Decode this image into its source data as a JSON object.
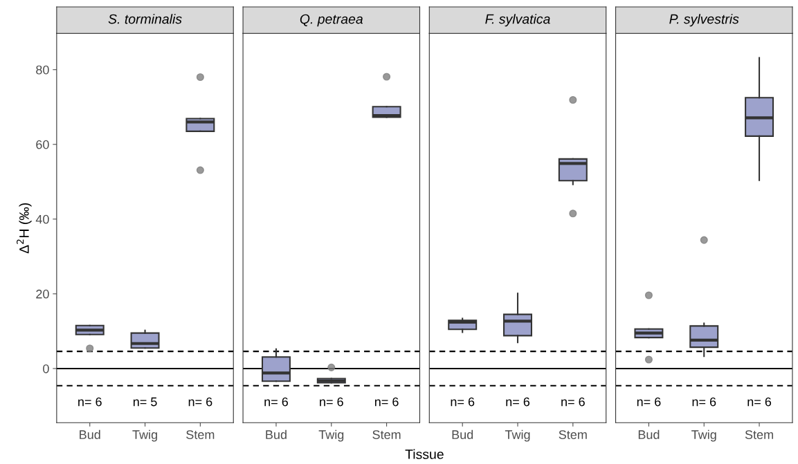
{
  "chart_data": [
    {
      "type": "box",
      "title": "S. torminalis",
      "ylabel": "Δ$^{2}$H (‰)",
      "categories": [
        "Bud",
        "Twig",
        "Stem"
      ],
      "color": "#9da2cc",
      "ylim": [
        -14.5,
        89.7
      ],
      "yticks": [
        0,
        20,
        40,
        60,
        80
      ],
      "grid": false,
      "boxes": [
        {
          "low": 9.1,
          "q1": 9.1,
          "median": 10.3,
          "q3": 11.5,
          "high": 11.5,
          "outliers": [
            5.4
          ]
        },
        {
          "low": 5.5,
          "q1": 5.5,
          "median": 6.7,
          "q3": 9.5,
          "high": 10.2
        },
        {
          "low": 63.5,
          "q1": 63.5,
          "median": 66.0,
          "q3": 66.9,
          "high": 66.9,
          "outliers": [
            78.0,
            53.1
          ]
        }
      ],
      "ref_lines": [
        {
          "axis": "y",
          "value": 0,
          "line_style": "solid"
        },
        {
          "axis": "y",
          "value": 4.6,
          "line_style": "dashed"
        },
        {
          "axis": "y",
          "value": -4.6,
          "line_style": "dashed"
        }
      ],
      "annotations": [
        "n= 6",
        "n= 5",
        "n= 6"
      ]
    },
    {
      "type": "box",
      "title": "Q. petraea",
      "xlabel": "Tissue",
      "categories": [
        "Bud",
        "Twig",
        "Stem"
      ],
      "color": "#9da2cc",
      "ylim": [
        -14.5,
        89.7
      ],
      "yticks": [
        0,
        20,
        40,
        60,
        80
      ],
      "tick_labels": "x",
      "grid": false,
      "boxes": [
        {
          "low": -3.4,
          "q1": -3.4,
          "median": -1.2,
          "q3": 3.1,
          "high": 5.2
        },
        {
          "low": -3.8,
          "q1": -3.8,
          "median": -3.3,
          "q3": -2.7,
          "high": -2.7,
          "outliers": [
            0.3
          ]
        },
        {
          "low": 67.3,
          "q1": 67.3,
          "median": 67.7,
          "q3": 70.1,
          "high": 70.1,
          "outliers": [
            78.1
          ]
        }
      ],
      "ref_lines": [
        {
          "axis": "y",
          "value": 0,
          "line_style": "solid"
        },
        {
          "axis": "y",
          "value": 4.6,
          "line_style": "dashed"
        },
        {
          "axis": "y",
          "value": -4.6,
          "line_style": "dashed"
        }
      ],
      "annotations": [
        "n= 6",
        "n= 6",
        "n= 6"
      ]
    },
    {
      "type": "box",
      "title": "F. sylvatica",
      "categories": [
        "Bud",
        "Twig",
        "Stem"
      ],
      "color": "#9da2cc",
      "ylim": [
        -14.5,
        89.7
      ],
      "yticks": [
        0,
        20,
        40,
        60,
        80
      ],
      "tick_labels": "x",
      "grid": false,
      "boxes": [
        {
          "low": 9.7,
          "q1": 10.5,
          "median": 12.4,
          "q3": 12.9,
          "high": 13.4
        },
        {
          "low": 7.0,
          "q1": 8.8,
          "median": 12.7,
          "q3": 14.5,
          "high": 20.1
        },
        {
          "low": 49.3,
          "q1": 50.3,
          "median": 54.9,
          "q3": 56.1,
          "high": 56.1,
          "outliers": [
            71.9,
            41.5
          ]
        }
      ],
      "ref_lines": [
        {
          "axis": "y",
          "value": 0,
          "line_style": "solid"
        },
        {
          "axis": "y",
          "value": 4.6,
          "line_style": "dashed"
        },
        {
          "axis": "y",
          "value": -4.6,
          "line_style": "dashed"
        }
      ],
      "annotations": [
        "n= 6",
        "n= 6",
        "n= 6"
      ]
    },
    {
      "type": "box",
      "title": "P. sylvestris",
      "categories": [
        "Bud",
        "Twig",
        "Stem"
      ],
      "color": "#9da2cc",
      "ylim": [
        -14.5,
        89.7
      ],
      "yticks": [
        0,
        20,
        40,
        60,
        80
      ],
      "tick_labels": "x",
      "grid": false,
      "boxes": [
        {
          "low": 8.3,
          "q1": 8.3,
          "median": 9.5,
          "q3": 10.6,
          "high": 10.6,
          "outliers": [
            19.6,
            2.4
          ]
        },
        {
          "low": 3.3,
          "q1": 5.7,
          "median": 7.6,
          "q3": 11.4,
          "high": 12.1,
          "outliers": [
            34.4
          ]
        },
        {
          "low": 50.4,
          "q1": 62.2,
          "median": 67.1,
          "q3": 72.5,
          "high": 83.2
        }
      ],
      "ref_lines": [
        {
          "axis": "y",
          "value": 0,
          "line_style": "solid"
        },
        {
          "axis": "y",
          "value": 4.6,
          "line_style": "dashed"
        },
        {
          "axis": "y",
          "value": -4.6,
          "line_style": "dashed"
        }
      ],
      "annotations": [
        "n= 6",
        "n= 6",
        "n= 6"
      ]
    }
  ]
}
